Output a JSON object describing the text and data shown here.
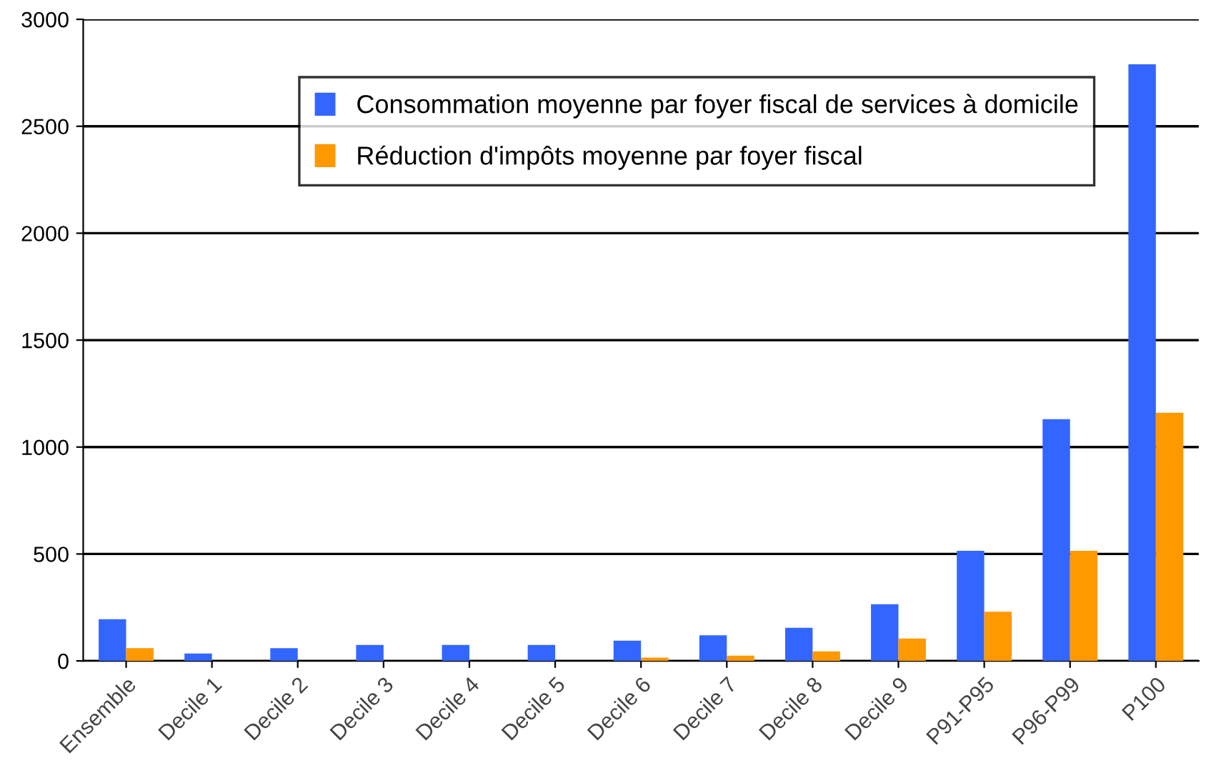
{
  "chart_data": {
    "type": "bar",
    "categories": [
      "Ensemble",
      "Decile 1",
      "Decile 2",
      "Decile 3",
      "Decile 4",
      "Decile 5",
      "Decile 6",
      "Decile 7",
      "Decile 8",
      "Decile 9",
      "P91-P95",
      "P96-P99",
      "P100"
    ],
    "series": [
      {
        "name": "Consommation moyenne par foyer fiscal de services à domicile",
        "color": "#3366ff",
        "values": [
          195,
          35,
          60,
          75,
          75,
          75,
          95,
          120,
          155,
          265,
          515,
          1130,
          2790
        ]
      },
      {
        "name": "Réduction d'impôts moyenne par foyer fiscal",
        "color": "#ff9900",
        "values": [
          60,
          0,
          0,
          0,
          0,
          0,
          15,
          25,
          45,
          105,
          230,
          515,
          1160
        ]
      }
    ],
    "ylim": [
      0,
      3000
    ],
    "yticks": [
      0,
      500,
      1000,
      1500,
      2000,
      2500,
      3000
    ],
    "grid": "y",
    "legend": "top"
  }
}
